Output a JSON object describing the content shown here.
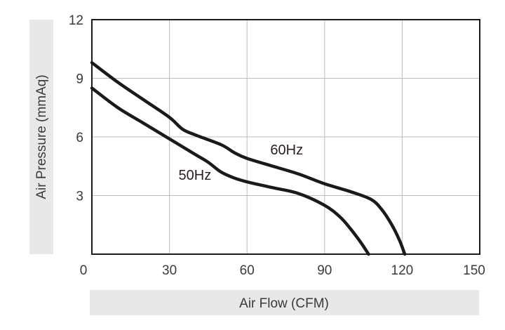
{
  "chart_data": {
    "type": "line",
    "title": "",
    "xlabel": "Air Flow (CFM)",
    "ylabel": "Air Pressure (mmAq)",
    "xlim": [
      0,
      150
    ],
    "ylim": [
      0,
      12
    ],
    "x_ticks": [
      0,
      30,
      60,
      90,
      120,
      150
    ],
    "x_tick_labels": [
      "0",
      "30",
      "60",
      "90",
      "120",
      "150"
    ],
    "y_ticks": [
      3,
      6,
      9,
      12
    ],
    "y_tick_labels": [
      "3",
      "6",
      "9",
      "12"
    ],
    "grid": true,
    "line_color": "#1a1a1a",
    "grid_color": "#bdbdbd",
    "label_band_color": "#e8e8e8",
    "series": [
      {
        "name": "60Hz",
        "x": [
          0,
          10,
          20,
          30,
          35,
          40,
          50,
          55,
          60,
          70,
          80,
          90,
          100,
          108,
          112,
          116,
          119,
          121
        ],
        "y": [
          9.8,
          8.8,
          7.9,
          7.0,
          6.4,
          6.1,
          5.6,
          5.2,
          4.9,
          4.5,
          4.1,
          3.6,
          3.2,
          2.8,
          2.3,
          1.5,
          0.7,
          0.0
        ]
      },
      {
        "name": "50Hz",
        "x": [
          0,
          10,
          20,
          30,
          40,
          45,
          50,
          55,
          60,
          70,
          80,
          90,
          96,
          100,
          104,
          107
        ],
        "y": [
          8.5,
          7.5,
          6.7,
          5.9,
          5.1,
          4.7,
          4.2,
          3.9,
          3.7,
          3.4,
          3.1,
          2.5,
          1.9,
          1.3,
          0.6,
          0.0
        ]
      }
    ],
    "annotations": [
      {
        "text": "60Hz",
        "x": 69,
        "y": 5.1
      },
      {
        "text": "50Hz",
        "x": 33.5,
        "y": 3.8
      }
    ]
  }
}
